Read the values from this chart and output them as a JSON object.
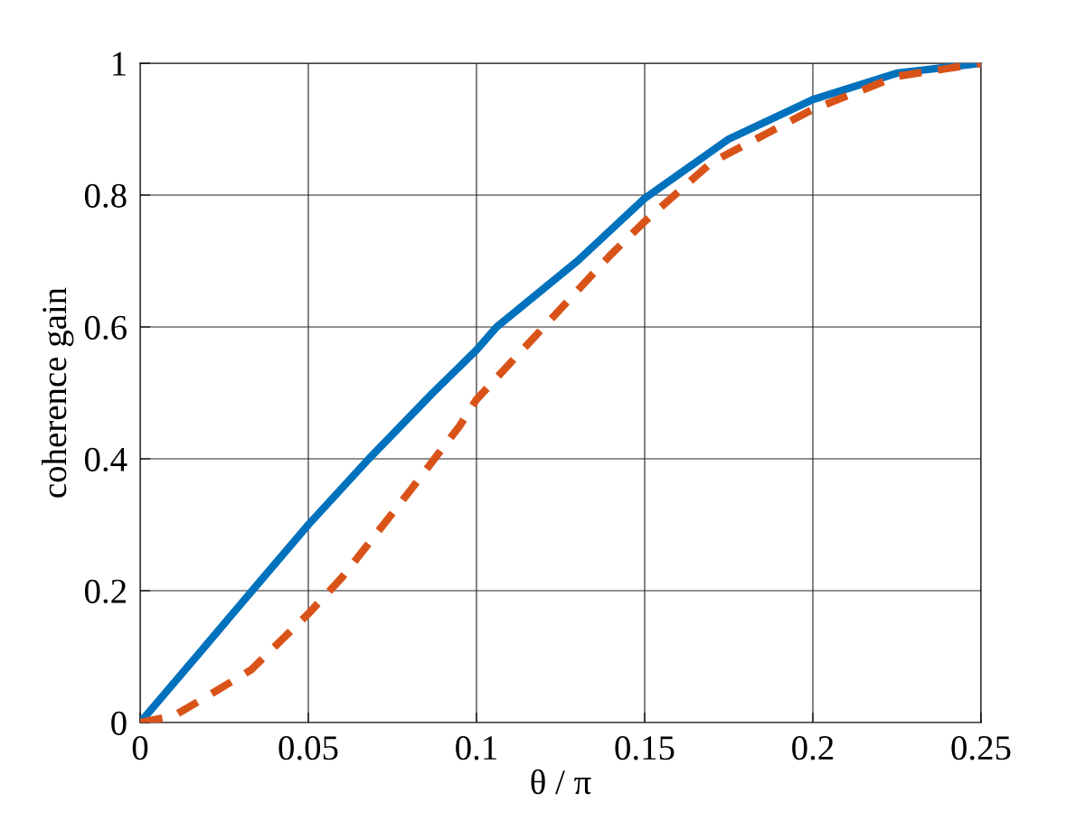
{
  "chart_data": {
    "type": "line",
    "xlabel": "θ / π",
    "ylabel": "coherence gain",
    "xlim": [
      0,
      0.25
    ],
    "ylim": [
      0,
      1
    ],
    "xticks": [
      0,
      0.05,
      0.1,
      0.15,
      0.2,
      0.25
    ],
    "yticks": [
      0,
      0.2,
      0.4,
      0.6,
      0.8,
      1
    ],
    "grid": true,
    "series": [
      {
        "color": "#0072bd",
        "line_style": "solid",
        "x": [
          0,
          0.0167,
          0.0333,
          0.05,
          0.068,
          0.087,
          0.1,
          0.106,
          0.13,
          0.15,
          0.175,
          0.2,
          0.225,
          0.25
        ],
        "values": [
          0,
          0.1,
          0.2,
          0.3,
          0.4,
          0.5,
          0.565,
          0.6,
          0.7,
          0.795,
          0.885,
          0.945,
          0.985,
          1
        ]
      },
      {
        "color": "#d95319",
        "line_style": "dashed",
        "x": [
          0,
          0.01,
          0.02,
          0.033,
          0.05,
          0.06,
          0.08,
          0.095,
          0.1,
          0.12,
          0.14,
          0.15,
          0.17,
          0.2,
          0.225,
          0.25
        ],
        "values": [
          0,
          0.01,
          0.04,
          0.08,
          0.165,
          0.22,
          0.35,
          0.45,
          0.49,
          0.6,
          0.71,
          0.76,
          0.85,
          0.93,
          0.98,
          1
        ]
      }
    ]
  }
}
